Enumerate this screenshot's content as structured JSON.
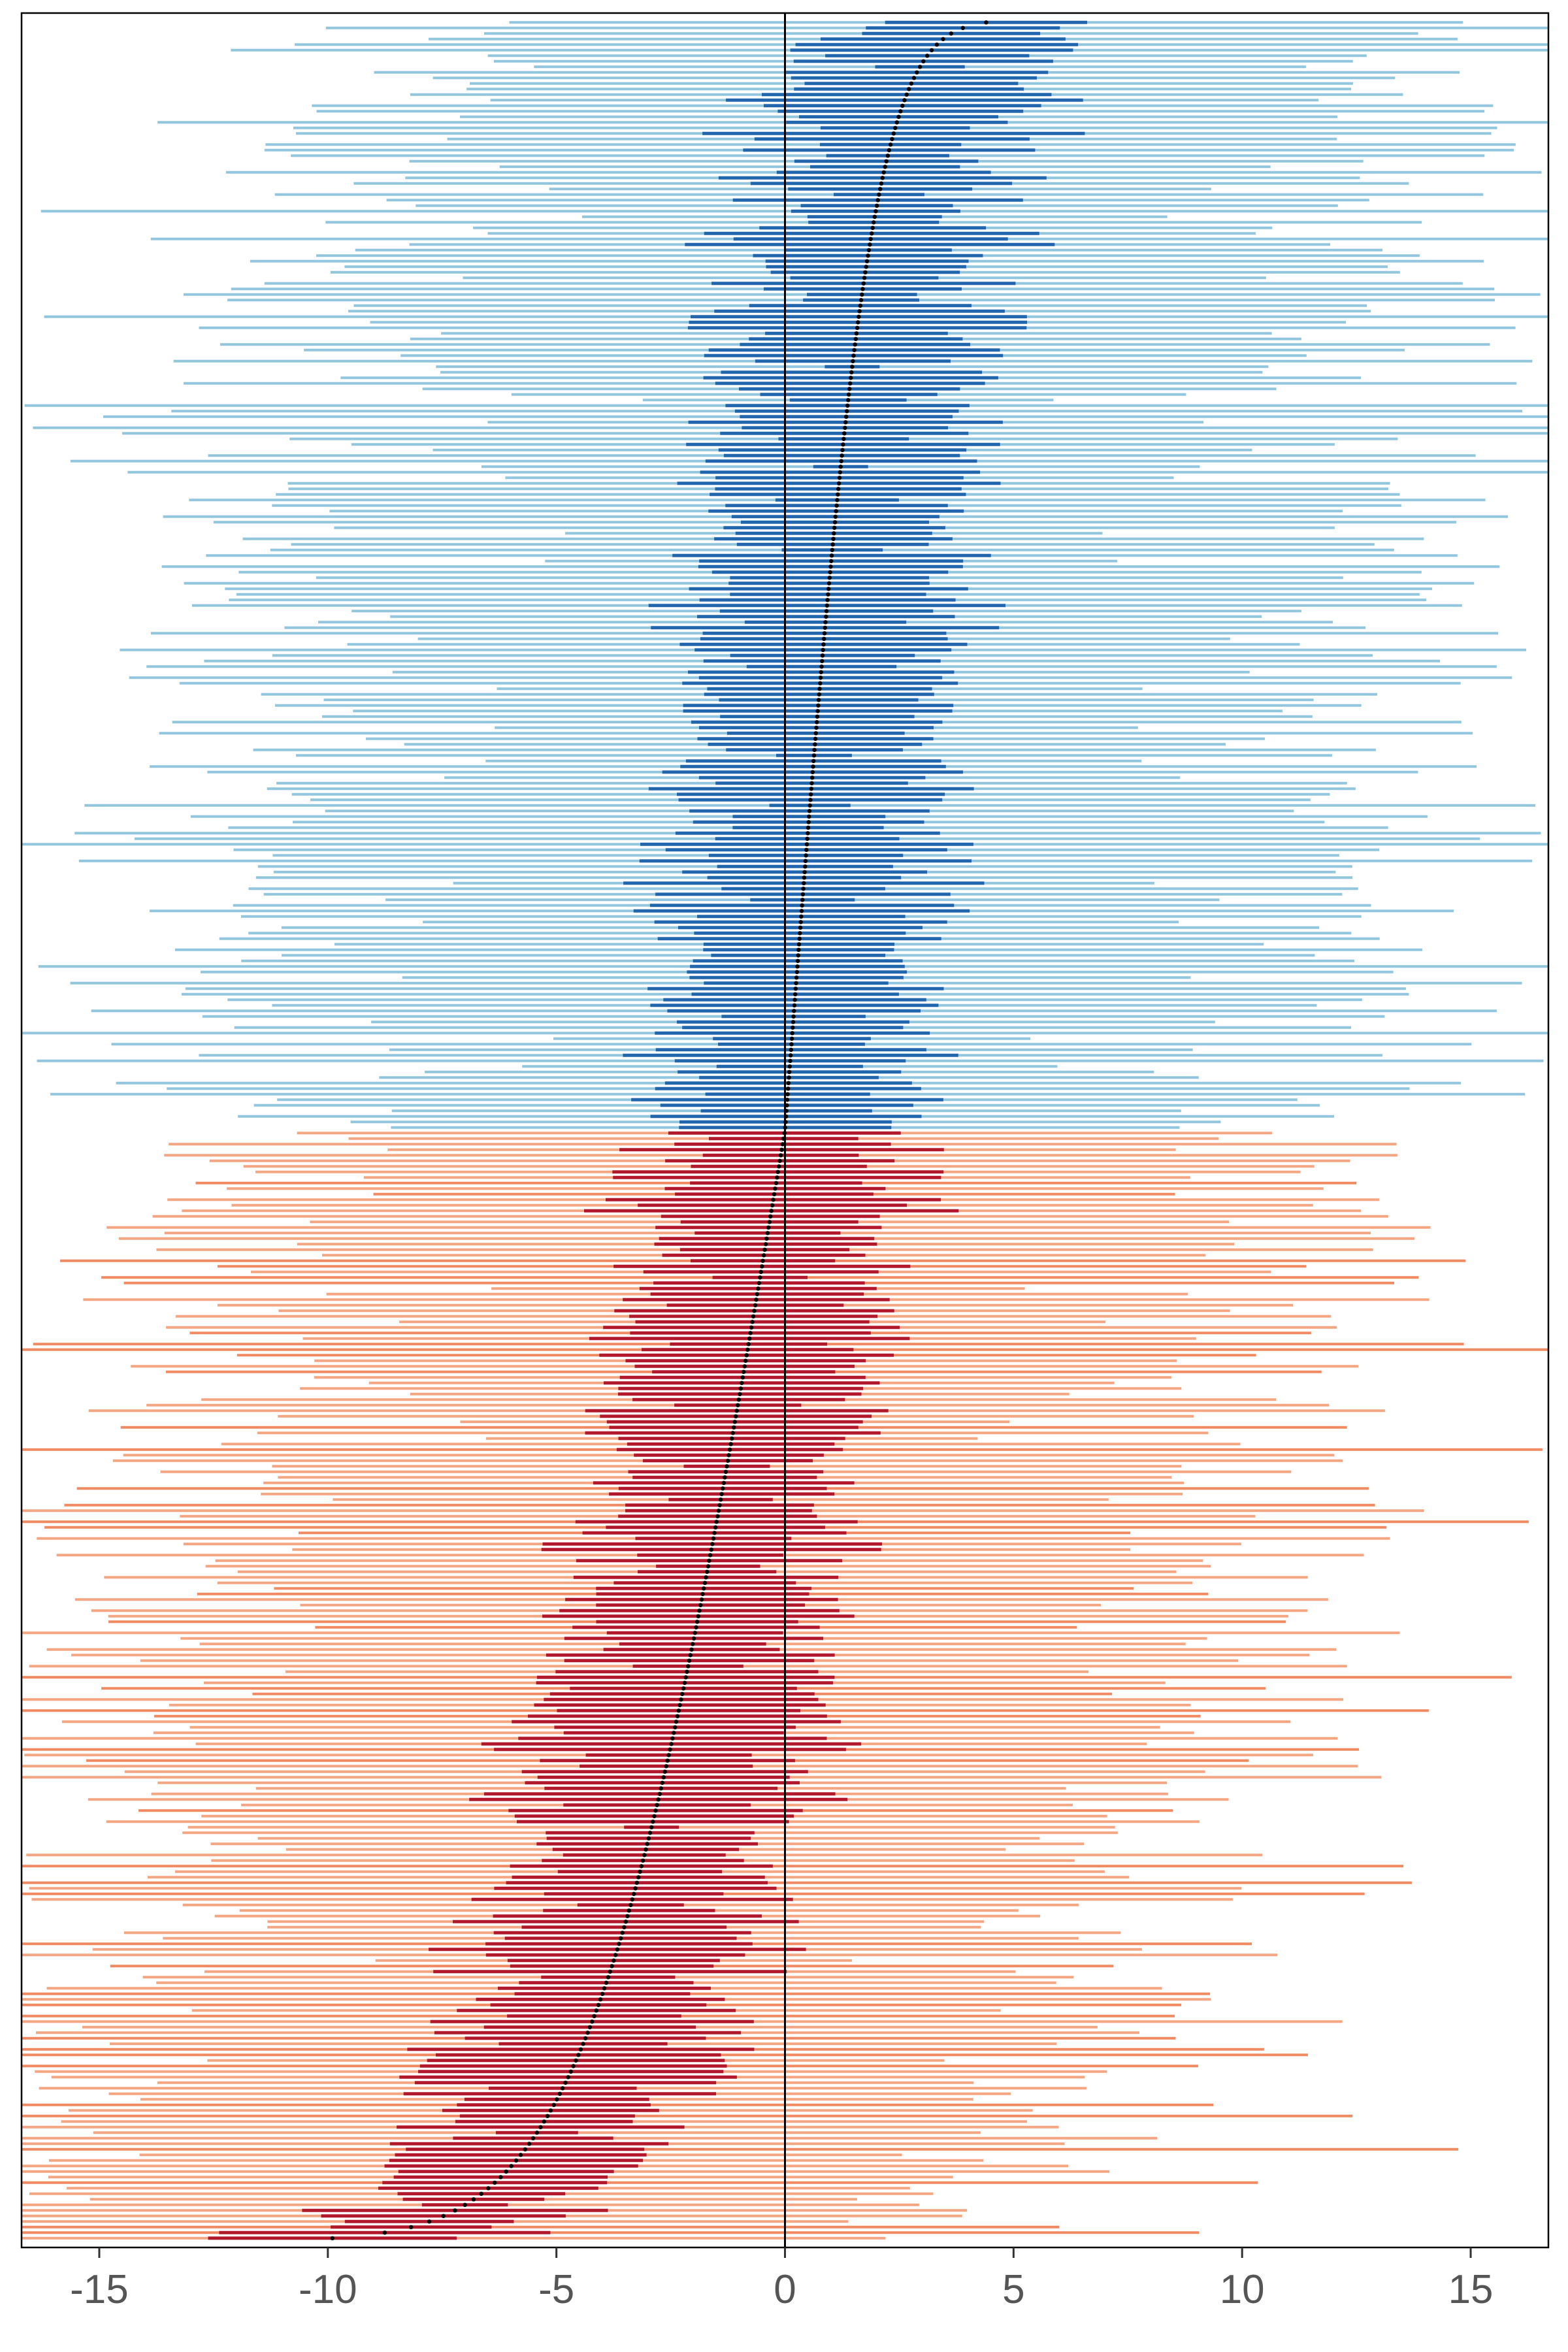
{
  "chart_data": {
    "type": "caterpillar-interval",
    "title": "",
    "xlabel": "",
    "ylabel": "",
    "xlim": [
      -16.7,
      16.7
    ],
    "n_items": 400,
    "x_ticks": [
      -15,
      -10,
      -5,
      0,
      5,
      10,
      15
    ],
    "x_tick_labels": [
      "-15",
      "-10",
      "-5",
      "0",
      "5",
      "10",
      "15"
    ],
    "reference_line_x": 0,
    "grid": false,
    "legend": "none",
    "point_estimate_range": [
      -9.9,
      4.4
    ],
    "inner_interval_typical_halfwidth": 2.5,
    "outer_interval_typical_halfwidth": 11,
    "colors": {
      "neg_outer": "#f4a582",
      "neg_outer_strong": "#ef8a62",
      "neg_inner": "#b2182b",
      "pos_outer": "#92c5de",
      "pos_inner": "#2166ac",
      "point": "#000000",
      "axis": "#000000"
    }
  }
}
